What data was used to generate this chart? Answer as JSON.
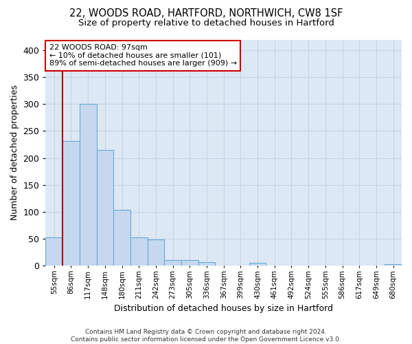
{
  "title1": "22, WOODS ROAD, HARTFORD, NORTHWICH, CW8 1SF",
  "title2": "Size of property relative to detached houses in Hartford",
  "xlabel": "Distribution of detached houses by size in Hartford",
  "ylabel": "Number of detached properties",
  "categories": [
    "55sqm",
    "86sqm",
    "117sqm",
    "148sqm",
    "180sqm",
    "211sqm",
    "242sqm",
    "273sqm",
    "305sqm",
    "336sqm",
    "367sqm",
    "399sqm",
    "430sqm",
    "461sqm",
    "492sqm",
    "524sqm",
    "555sqm",
    "586sqm",
    "617sqm",
    "649sqm",
    "680sqm"
  ],
  "values": [
    53,
    232,
    300,
    215,
    103,
    52,
    49,
    10,
    10,
    7,
    0,
    0,
    5,
    0,
    0,
    0,
    0,
    0,
    0,
    0,
    3
  ],
  "bar_color": "#c5d8ef",
  "bar_edge_color": "#6aaad4",
  "grid_color": "#c8d4e4",
  "background_color": "#dde8f5",
  "annotation_line1": "22 WOODS ROAD: 97sqm",
  "annotation_line2": "← 10% of detached houses are smaller (101)",
  "annotation_line3": "89% of semi-detached houses are larger (909) →",
  "annotation_box_edgecolor": "#cc0000",
  "vline_color": "#aa0000",
  "vline_x": 0.5,
  "ylim": [
    0,
    420
  ],
  "yticks": [
    0,
    50,
    100,
    150,
    200,
    250,
    300,
    350,
    400
  ],
  "footer": "Contains HM Land Registry data © Crown copyright and database right 2024.\nContains public sector information licensed under the Open Government Licence v3.0.",
  "title_fontsize": 10.5,
  "subtitle_fontsize": 9.5,
  "ylabel_fontsize": 9,
  "xlabel_fontsize": 9,
  "tick_fontsize": 7.5,
  "footer_fontsize": 6.5
}
